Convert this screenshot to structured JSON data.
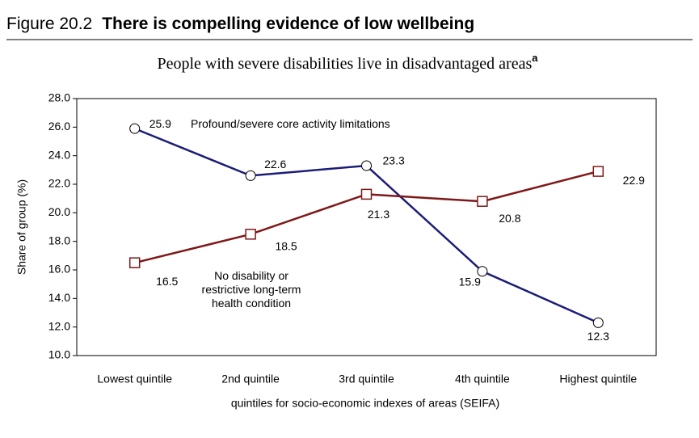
{
  "chart_data": {
    "type": "line",
    "figure_label": "Figure 20.2",
    "title": "There is compelling evidence of low wellbeing",
    "subtitle": "People with severe disabilities live in disadvantaged areas",
    "subtitle_superscript": "a",
    "ylabel": "Share of group (%)",
    "xlabel": "quintiles for socio-economic indexes of areas (SEIFA)",
    "categories": [
      "Lowest quintile",
      "2nd quintile",
      "3rd quintile",
      "4th quintile",
      "Highest quintile"
    ],
    "series": [
      {
        "name": "Profound/severe core activity limitations",
        "color": "#1c1c78",
        "marker": "circle",
        "values": [
          25.9,
          22.6,
          23.3,
          15.9,
          12.3
        ]
      },
      {
        "name": "No disability or restrictive long-term health condition",
        "color": "#7f1818",
        "marker": "square",
        "values": [
          16.5,
          18.5,
          21.3,
          20.8,
          22.9
        ]
      }
    ],
    "ylim": [
      10,
      28
    ],
    "yticks": [
      {
        "value": 10,
        "label": "10.0"
      },
      {
        "value": 12,
        "label": "12.0"
      },
      {
        "value": 14,
        "label": "14.0"
      },
      {
        "value": 16,
        "label": "16.0"
      },
      {
        "value": 18,
        "label": "18.0"
      },
      {
        "value": 20,
        "label": "20.0"
      },
      {
        "value": 22,
        "label": "22.0"
      },
      {
        "value": 24,
        "label": "24.0"
      },
      {
        "value": 26,
        "label": "26.0"
      },
      {
        "value": 28,
        "label": "28.0"
      }
    ]
  }
}
